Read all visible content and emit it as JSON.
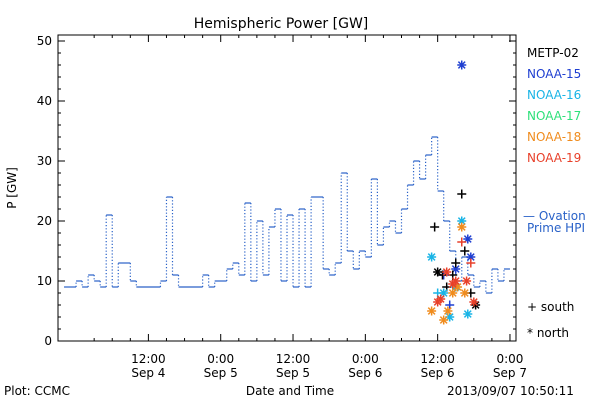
{
  "chart_data": {
    "type": "scatter",
    "title": "Hemispheric Power [GW]",
    "ylabel": "P [GW]",
    "xlabel": "Date and Time",
    "footer_left": "Plot: CCMC",
    "footer_right": "2013/09/07 10:50:11",
    "ylim": [
      0,
      51
    ],
    "yticks": [
      0,
      10,
      20,
      30,
      40,
      50
    ],
    "xlim_hours": [
      -3,
      73
    ],
    "x_time_ref": "2013-09-04T00:00",
    "xticks": [
      {
        "h": 12,
        "time": "12:00",
        "date": "Sep 4"
      },
      {
        "h": 24,
        "time": "0:00",
        "date": "Sep 5"
      },
      {
        "h": 36,
        "time": "12:00",
        "date": "Sep 5"
      },
      {
        "h": 48,
        "time": "0:00",
        "date": "Sep 6"
      },
      {
        "h": 60,
        "time": "12:00",
        "date": "Sep 6"
      },
      {
        "h": 72,
        "time": "0:00",
        "date": "Sep 7"
      }
    ],
    "legend": {
      "satellites": [
        {
          "name": "METP-02",
          "color": "#000000"
        },
        {
          "name": "NOAA-15",
          "color": "#1f3fd1"
        },
        {
          "name": "NOAA-16",
          "color": "#19b4e6"
        },
        {
          "name": "NOAA-17",
          "color": "#2ee07a"
        },
        {
          "name": "NOAA-18",
          "color": "#f08c1e"
        },
        {
          "name": "NOAA-19",
          "color": "#e8402a"
        }
      ],
      "ovation": {
        "line1": "— Ovation",
        "line2": "Prime HPI",
        "color": "#2a62c8"
      },
      "symbols": [
        {
          "marker": "+",
          "label": "south"
        },
        {
          "marker": "*",
          "label": "north"
        }
      ]
    },
    "series": [
      {
        "name": "Ovation Prime HPI",
        "color": "#2a62c8",
        "steps": [
          [
            -2,
            9
          ],
          [
            0,
            10
          ],
          [
            1,
            9
          ],
          [
            2,
            11
          ],
          [
            3,
            10
          ],
          [
            4,
            9
          ],
          [
            5,
            21
          ],
          [
            6,
            9
          ],
          [
            7,
            13
          ],
          [
            9,
            10
          ],
          [
            10,
            9
          ],
          [
            14,
            10
          ],
          [
            15,
            24
          ],
          [
            16,
            11
          ],
          [
            17,
            9
          ],
          [
            21,
            11
          ],
          [
            22,
            9
          ],
          [
            23,
            10
          ],
          [
            25,
            12
          ],
          [
            26,
            13
          ],
          [
            27,
            11
          ],
          [
            28,
            23
          ],
          [
            29,
            10
          ],
          [
            30,
            20
          ],
          [
            31,
            11
          ],
          [
            32,
            19
          ],
          [
            33,
            22
          ],
          [
            34,
            10
          ],
          [
            35,
            21
          ],
          [
            36,
            9
          ],
          [
            37,
            22
          ],
          [
            38,
            9
          ],
          [
            39,
            24
          ],
          [
            41,
            12
          ],
          [
            42,
            11
          ],
          [
            43,
            13
          ],
          [
            44,
            28
          ],
          [
            45,
            15
          ],
          [
            46,
            12
          ],
          [
            47,
            15
          ],
          [
            48,
            14
          ],
          [
            49,
            27
          ],
          [
            50,
            16
          ],
          [
            51,
            19
          ],
          [
            52,
            20
          ],
          [
            53,
            18
          ],
          [
            54,
            22
          ],
          [
            55,
            26
          ],
          [
            56,
            30
          ],
          [
            57,
            27
          ],
          [
            58,
            31
          ],
          [
            59,
            34
          ],
          [
            60,
            25
          ],
          [
            61,
            20
          ],
          [
            62,
            15
          ],
          [
            63,
            10
          ],
          [
            64,
            14
          ],
          [
            65,
            11
          ],
          [
            66,
            9
          ],
          [
            67,
            10
          ],
          [
            68,
            8
          ],
          [
            69,
            12
          ],
          [
            70,
            10
          ],
          [
            71,
            12
          ],
          [
            72,
            null
          ]
        ]
      },
      {
        "name": "NOAA-15",
        "color": "#1f3fd1",
        "points": [
          [
            61,
            11,
            "+"
          ],
          [
            62,
            6,
            "+"
          ],
          [
            63,
            12,
            "*"
          ],
          [
            64,
            46,
            "*"
          ],
          [
            65,
            17,
            "*"
          ],
          [
            65.5,
            14,
            "*"
          ]
        ]
      },
      {
        "name": "METP-02",
        "color": "#000000",
        "points": [
          [
            59.5,
            19,
            "+"
          ],
          [
            60,
            11.5,
            "*"
          ],
          [
            60.8,
            11,
            "+"
          ],
          [
            61.5,
            9,
            "+"
          ],
          [
            62.5,
            11,
            "+"
          ],
          [
            63,
            13,
            "+"
          ],
          [
            64,
            24.5,
            "+"
          ],
          [
            64.5,
            15,
            "+"
          ],
          [
            65.5,
            8,
            "+"
          ],
          [
            66.3,
            6,
            "*"
          ]
        ]
      },
      {
        "name": "NOAA-16",
        "color": "#19b4e6",
        "points": [
          [
            59,
            14,
            "*"
          ],
          [
            60,
            8,
            "+"
          ],
          [
            61,
            8,
            "*"
          ],
          [
            62,
            4,
            "*"
          ],
          [
            63,
            9,
            "*"
          ],
          [
            64,
            20,
            "*"
          ],
          [
            65,
            4.5,
            "*"
          ]
        ]
      },
      {
        "name": "NOAA-18",
        "color": "#f08c1e",
        "points": [
          [
            59,
            5,
            "*"
          ],
          [
            61,
            3.5,
            "*"
          ],
          [
            61.7,
            5,
            "*"
          ],
          [
            62.5,
            8,
            "*"
          ],
          [
            63.3,
            9,
            "*"
          ],
          [
            64,
            19,
            "*"
          ],
          [
            64.5,
            8,
            "*"
          ]
        ]
      },
      {
        "name": "NOAA-19",
        "color": "#e8402a",
        "points": [
          [
            60,
            6.5,
            "*"
          ],
          [
            60.5,
            7,
            "*"
          ],
          [
            61.5,
            11.5,
            "*"
          ],
          [
            62.5,
            9.5,
            "*"
          ],
          [
            63,
            10,
            "*"
          ],
          [
            64,
            16.5,
            "+"
          ],
          [
            64.8,
            10,
            "*"
          ],
          [
            65.5,
            13,
            "+"
          ],
          [
            66,
            6.5,
            "*"
          ]
        ]
      }
    ]
  }
}
